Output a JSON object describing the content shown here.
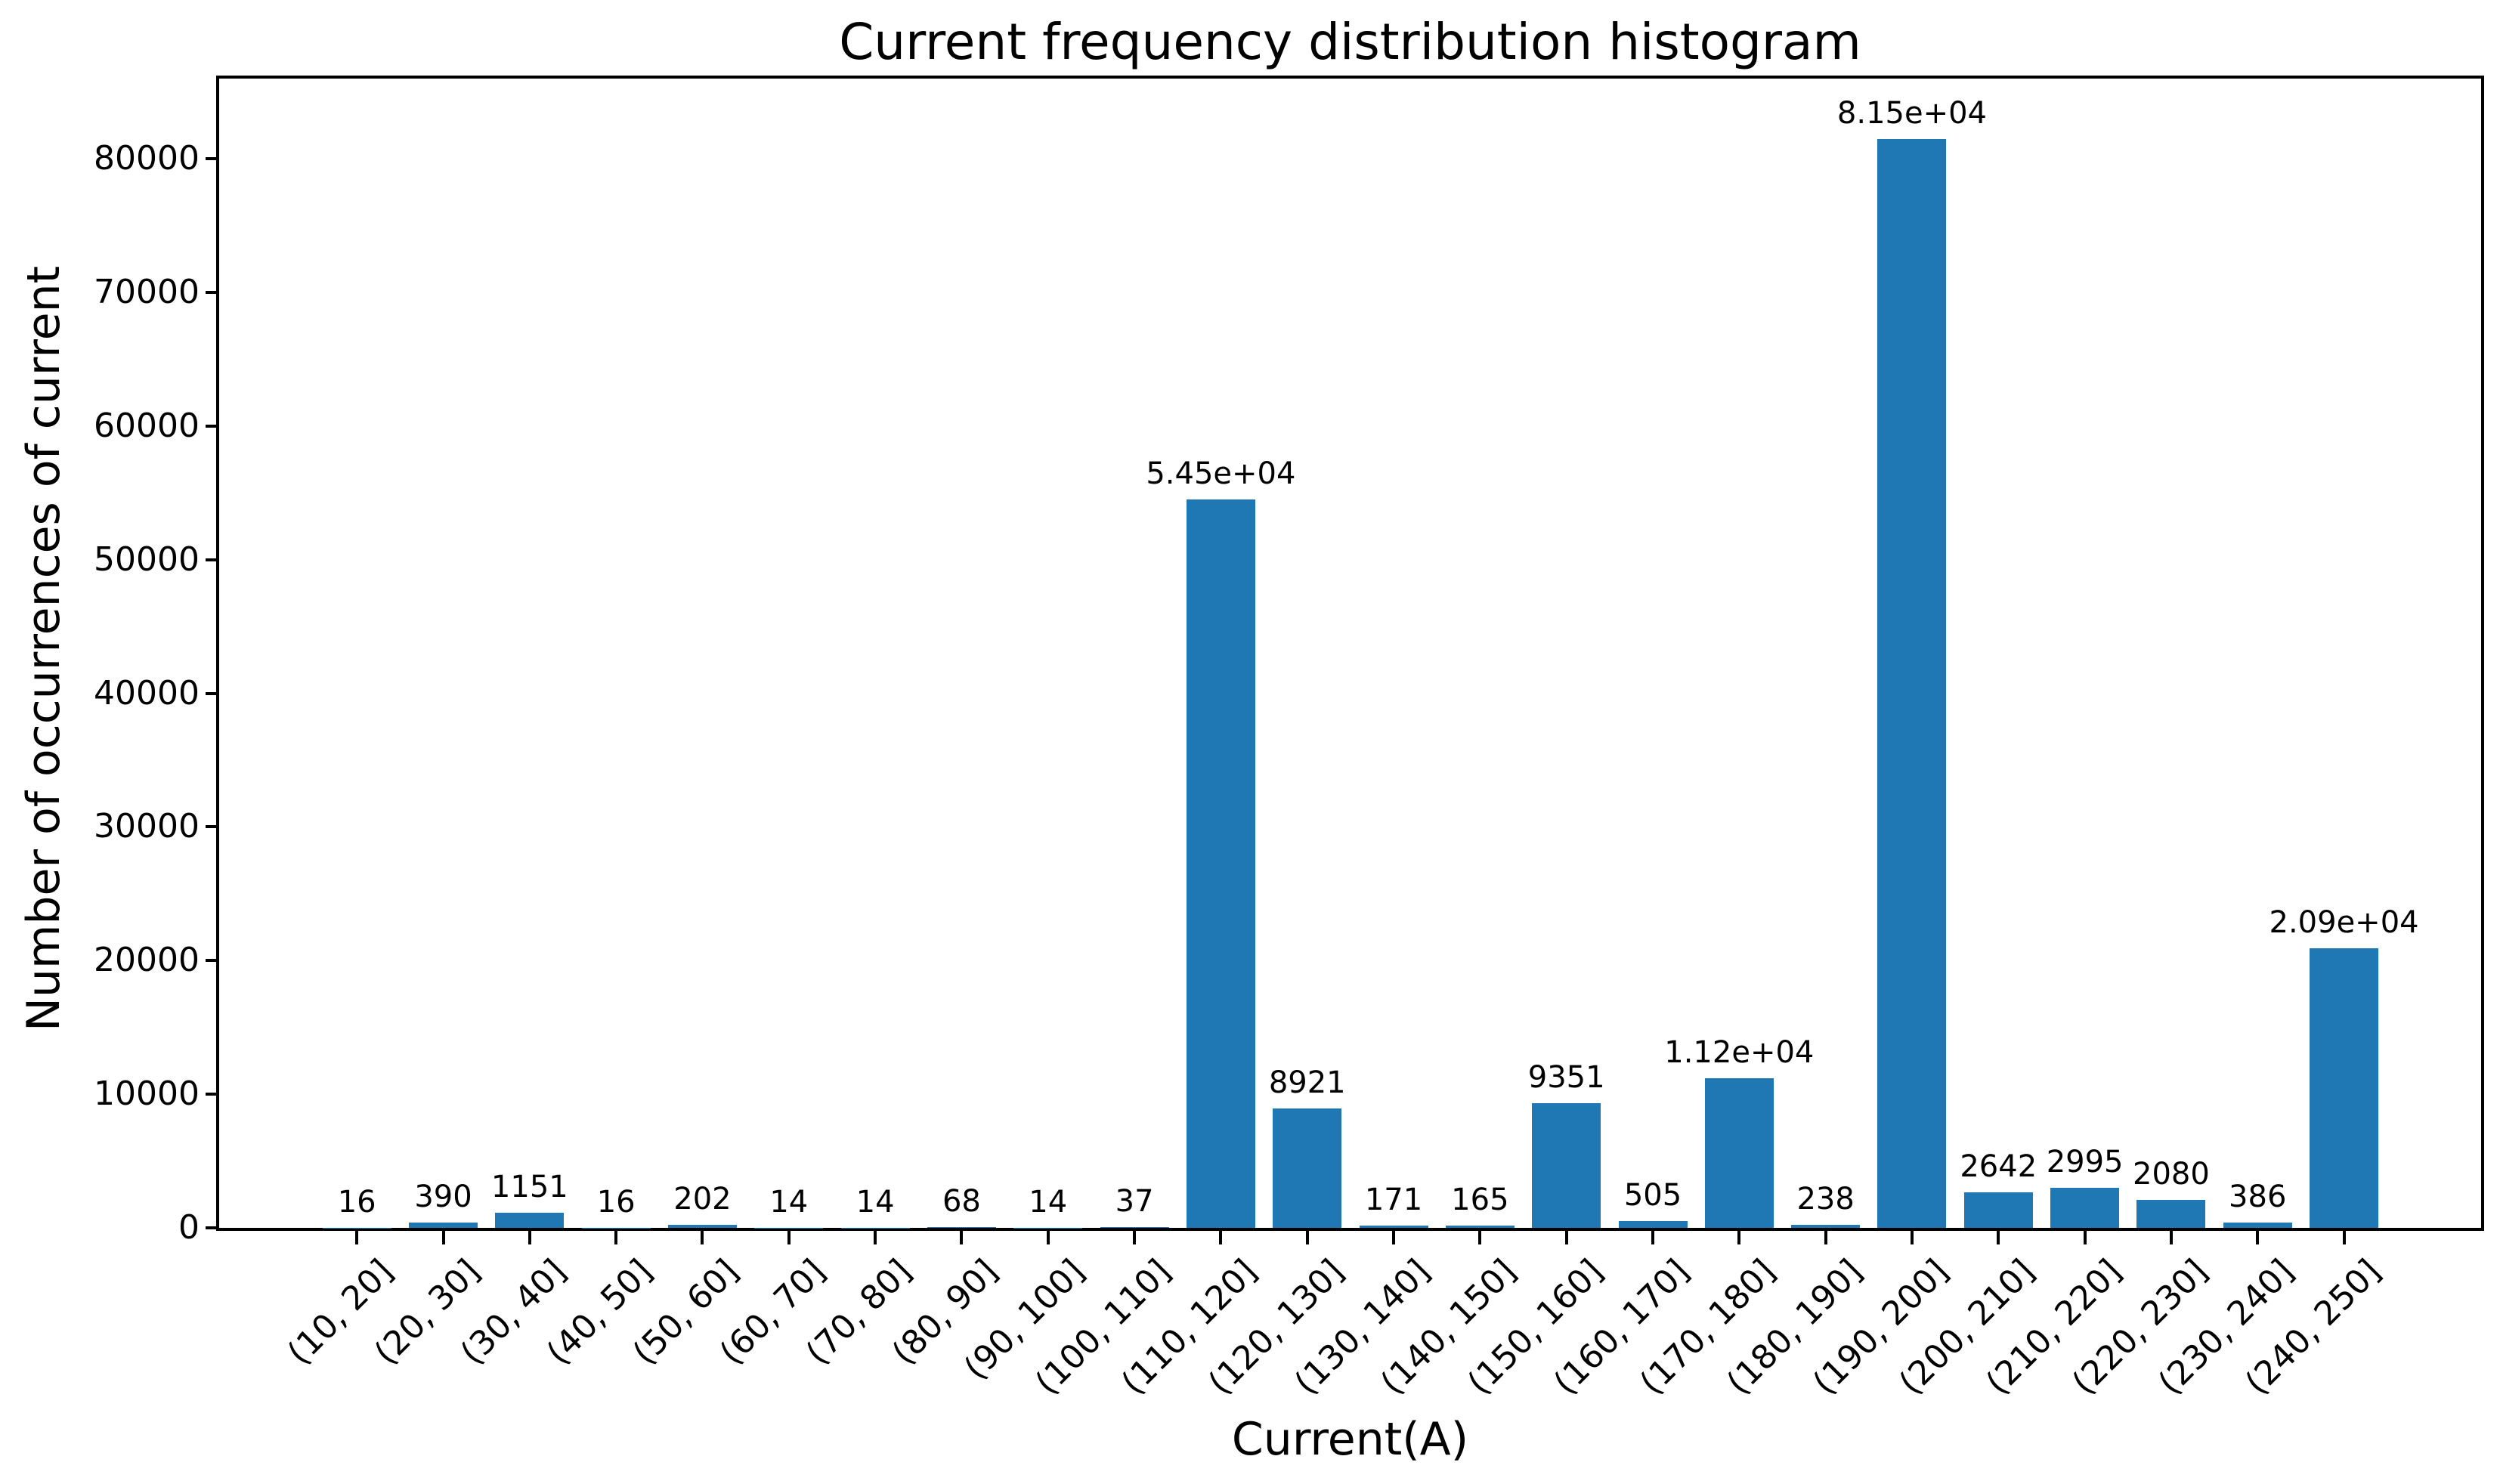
{
  "chart_data": {
    "type": "bar",
    "title": "Current frequency distribution histogram",
    "xlabel": "Current(A)",
    "ylabel": "Number of occurrences of current",
    "categories": [
      "(10, 20]",
      "(20, 30]",
      "(30, 40]",
      "(40, 50]",
      "(50, 60]",
      "(60, 70]",
      "(70, 80]",
      "(80, 90]",
      "(90, 100]",
      "(100, 110]",
      "(110, 120]",
      "(120, 130]",
      "(130, 140]",
      "(140, 150]",
      "(150, 160]",
      "(160, 170]",
      "(170, 180]",
      "(180, 190]",
      "(190, 200]",
      "(200, 210]",
      "(210, 220]",
      "(220, 230]",
      "(230, 240]",
      "(240, 250]"
    ],
    "values": [
      16,
      390,
      1151,
      16,
      202,
      14,
      14,
      68,
      14,
      37,
      54500,
      8921,
      171,
      165,
      9351,
      505,
      11200,
      238,
      81500,
      2642,
      2995,
      2080,
      386,
      20900
    ],
    "bar_labels": [
      "16",
      "390",
      "1151",
      "16",
      "202",
      "14",
      "14",
      "68",
      "14",
      "37",
      "5.45e+04",
      "8921",
      "171",
      "165",
      "9351",
      "505",
      "1.12e+04",
      "238",
      "8.15e+04",
      "2642",
      "2995",
      "2080",
      "386",
      "2.09e+04"
    ],
    "ytick_values": [
      0,
      10000,
      20000,
      30000,
      40000,
      50000,
      60000,
      70000,
      80000
    ],
    "ytick_labels": [
      "0",
      "10000",
      "20000",
      "30000",
      "40000",
      "50000",
      "60000",
      "70000",
      "80000"
    ],
    "ylim": [
      0,
      86000
    ],
    "grid": "off",
    "legend": "none",
    "bar_color": "#1f77b4",
    "axis_color": "#000000",
    "background_color": "#ffffff"
  }
}
